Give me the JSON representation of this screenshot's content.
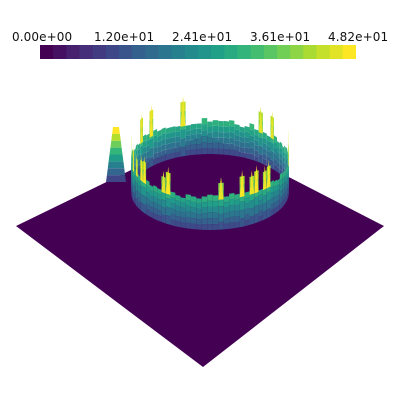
{
  "colorbar": {
    "ticks": [
      "0.00e+00",
      "1.20e+01",
      "2.41e+01",
      "3.61e+01",
      "4.82e+01"
    ],
    "range": [
      0.0,
      48.2
    ],
    "colormap": "viridis",
    "stops": [
      "#440154",
      "#482878",
      "#3e4989",
      "#31688e",
      "#26828e",
      "#1f9e89",
      "#35b779",
      "#6ece58",
      "#b5de2b",
      "#fde725"
    ],
    "segments": 24
  },
  "surface": {
    "floor_color": "#440154",
    "ring_description_values": {
      "peak_height": 48.2,
      "base_value": 0.0
    }
  }
}
